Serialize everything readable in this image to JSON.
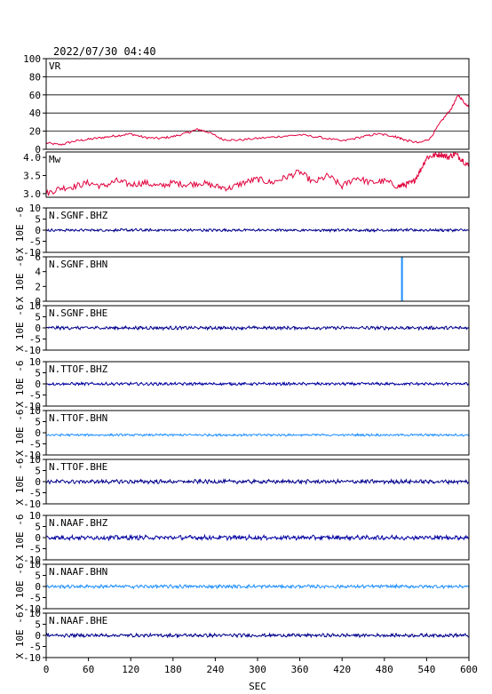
{
  "header": {
    "datetime": "2022/07/30 04:40"
  },
  "chart_data": {
    "type": "line",
    "xlabel": "SEC",
    "xlim": [
      0,
      600
    ],
    "xticks": [
      "0",
      "60",
      "120",
      "180",
      "240",
      "300",
      "360",
      "420",
      "480",
      "540",
      "600"
    ],
    "panels": [
      {
        "title": "VR",
        "ylim": [
          0,
          100
        ],
        "yticks": [
          "0",
          "20",
          "40",
          "60",
          "80",
          "100"
        ],
        "grid": true,
        "ylabel": "",
        "color": "#e0003c",
        "series": {
          "x": [
            0,
            20,
            40,
            60,
            80,
            100,
            120,
            140,
            160,
            180,
            200,
            215,
            230,
            250,
            270,
            300,
            330,
            360,
            390,
            420,
            450,
            470,
            490,
            500,
            510,
            530,
            545,
            560,
            575,
            585,
            595,
            600
          ],
          "y": [
            7,
            5,
            9,
            11,
            13,
            15,
            17,
            13,
            12,
            14,
            18,
            22,
            19,
            11,
            10,
            12,
            14,
            16,
            13,
            9,
            14,
            17,
            15,
            13,
            10,
            7,
            12,
            30,
            45,
            60,
            50,
            48
          ]
        }
      },
      {
        "title": "Mw",
        "ylim": [
          2.9,
          4.15
        ],
        "yticks": [
          "3.0",
          "3.5",
          "4.0"
        ],
        "grid": false,
        "ylabel": "",
        "color": "#e0003c",
        "series": {
          "x": [
            0,
            20,
            40,
            60,
            80,
            100,
            120,
            140,
            160,
            180,
            200,
            220,
            240,
            260,
            280,
            300,
            320,
            340,
            360,
            380,
            400,
            420,
            440,
            460,
            480,
            500,
            510,
            520,
            530,
            540,
            550,
            560,
            570,
            580,
            590,
            600
          ],
          "y": [
            3.0,
            3.15,
            3.2,
            3.3,
            3.2,
            3.35,
            3.25,
            3.3,
            3.2,
            3.3,
            3.25,
            3.3,
            3.2,
            3.15,
            3.3,
            3.4,
            3.3,
            3.45,
            3.6,
            3.3,
            3.5,
            3.2,
            3.45,
            3.3,
            3.35,
            3.2,
            3.25,
            3.3,
            3.6,
            4.0,
            4.05,
            4.1,
            4.0,
            4.1,
            3.95,
            3.75
          ]
        }
      },
      {
        "title": "N.SGNF.BHZ",
        "ylim": [
          -10,
          10
        ],
        "yticks": [
          "-10",
          "-5",
          "0",
          "5",
          "10"
        ],
        "grid": false,
        "ylabel": "X 10E -6",
        "color": "#00008b",
        "noise": {
          "baseline": 0,
          "amplitude": 0.5
        }
      },
      {
        "title": "N.SGNF.BHN",
        "ylim": [
          0,
          6
        ],
        "yticks": [
          "0",
          "2",
          "4",
          "6"
        ],
        "grid": false,
        "ylabel": "X 10E -6",
        "color": "#1e8fff",
        "spike": {
          "x": 505,
          "from": 0,
          "to": 6
        }
      },
      {
        "title": "N.SGNF.BHE",
        "ylim": [
          -10,
          10
        ],
        "yticks": [
          "-10",
          "-5",
          "0",
          "5",
          "10"
        ],
        "grid": false,
        "ylabel": "X 10E -6",
        "color": "#00008b",
        "noise": {
          "baseline": 0,
          "amplitude": 0.6
        }
      },
      {
        "title": "N.TTOF.BHZ",
        "ylim": [
          -10,
          10
        ],
        "yticks": [
          "-10",
          "-5",
          "0",
          "5",
          "10"
        ],
        "grid": false,
        "ylabel": "X 10E -6",
        "color": "#0000a0",
        "noise": {
          "baseline": 0,
          "amplitude": 0.5
        }
      },
      {
        "title": "N.TTOF.BHN",
        "ylim": [
          -10,
          10
        ],
        "yticks": [
          "-10",
          "-5",
          "0",
          "5",
          "10"
        ],
        "grid": false,
        "ylabel": "X 10E -6",
        "color": "#1e8fff",
        "noise": {
          "baseline": -1,
          "amplitude": 0.4
        }
      },
      {
        "title": "N.TTOF.BHE",
        "ylim": [
          -10,
          10
        ],
        "yticks": [
          "-10",
          "-5",
          "0",
          "5",
          "10"
        ],
        "grid": false,
        "ylabel": "X 10E -6",
        "color": "#00008b",
        "noise": {
          "baseline": 0,
          "amplitude": 0.7
        }
      },
      {
        "title": "N.NAAF.BHZ",
        "ylim": [
          -10,
          10
        ],
        "yticks": [
          "-10",
          "-5",
          "0",
          "5",
          "10"
        ],
        "grid": false,
        "ylabel": "X 10E -6",
        "color": "#0000a0",
        "noise": {
          "baseline": 0,
          "amplitude": 0.8
        }
      },
      {
        "title": "N.NAAF.BHN",
        "ylim": [
          -10,
          10
        ],
        "yticks": [
          "-10",
          "-5",
          "0",
          "5",
          "10"
        ],
        "grid": false,
        "ylabel": "X 10E -6",
        "color": "#1e8fff",
        "noise": {
          "baseline": 0,
          "amplitude": 0.6
        }
      },
      {
        "title": "N.NAAF.BHE",
        "ylim": [
          -10,
          10
        ],
        "yticks": [
          "-10",
          "-5",
          "0",
          "5",
          "10"
        ],
        "grid": false,
        "ylabel": "X 10E -6",
        "color": "#00008b",
        "noise": {
          "baseline": 0,
          "amplitude": 0.6
        }
      }
    ]
  }
}
